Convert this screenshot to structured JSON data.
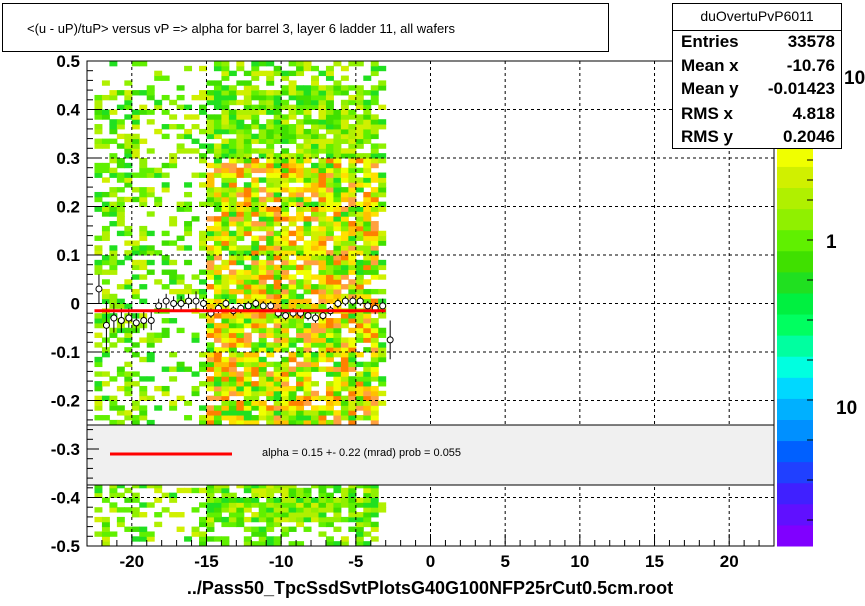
{
  "title": "<(u - uP)/tuP>  versus   vP => alpha for barrel 3, layer 6 ladder 11, all wafers",
  "stats": {
    "name": "duOvertuPvP6011",
    "rows": [
      {
        "label": "Entries",
        "value": "33578"
      },
      {
        "label": "Mean x",
        "value": "-10.76"
      },
      {
        "label": "Mean y",
        "value": "-0.01423"
      },
      {
        "label": "RMS x",
        "value": "4.818"
      },
      {
        "label": "RMS y",
        "value": "0.2046"
      }
    ]
  },
  "fit": {
    "text": "alpha =     0.15 +-  0.22 (mrad) prob = 0.055",
    "line_color": "#ff0000"
  },
  "xlabel": "../Pass50_TpcSsdSvtPlotsG40G100NFP25rCut0.5cm.root",
  "zaxis_labels": [
    {
      "text": "10",
      "value": 10
    },
    {
      "text": "1",
      "value": 1
    },
    {
      "text": "10",
      "value": 10
    }
  ],
  "colors": {
    "fit_line": "#ff0000",
    "palette": [
      "#8000ff",
      "#6010ff",
      "#4020ff",
      "#2040ff",
      "#0060ff",
      "#0090ff",
      "#00b0ff",
      "#00d8ff",
      "#00ffe0",
      "#00ffa0",
      "#00ff60",
      "#00f040",
      "#20e020",
      "#40e000",
      "#60f000",
      "#90f000",
      "#b0f000",
      "#d0f000",
      "#f0ff00",
      "#ffe000",
      "#ffc000",
      "#ffa040",
      "#ffffff"
    ]
  },
  "chart_data": {
    "type": "heatmap",
    "x_ticks": [
      -20,
      -15,
      -10,
      -5,
      0,
      5,
      10,
      15,
      20
    ],
    "y_ticks": [
      -0.5,
      -0.4,
      -0.3,
      -0.2,
      -0.1,
      0,
      0.1,
      0.2,
      0.3,
      0.4,
      0.5
    ],
    "xlim": [
      -23,
      23
    ],
    "ylim": [
      -0.5,
      0.5
    ],
    "grid": true,
    "filled_x_range": [
      -22.5,
      -3
    ],
    "dense_x_range": [
      -15,
      -3.5
    ],
    "profile_points": [
      {
        "x": -22.2,
        "y": 0.03,
        "err": 0.03
      },
      {
        "x": -21.7,
        "y": -0.045,
        "err": 0.05
      },
      {
        "x": -21.2,
        "y": -0.03,
        "err": 0.03
      },
      {
        "x": -20.7,
        "y": -0.035,
        "err": 0.025
      },
      {
        "x": -20.2,
        "y": -0.03,
        "err": 0.02
      },
      {
        "x": -19.7,
        "y": -0.04,
        "err": 0.02
      },
      {
        "x": -19.2,
        "y": -0.035,
        "err": 0.02
      },
      {
        "x": -18.7,
        "y": -0.035,
        "err": 0.02
      },
      {
        "x": -18.2,
        "y": -0.005,
        "err": 0.015
      },
      {
        "x": -17.7,
        "y": 0.005,
        "err": 0.015
      },
      {
        "x": -17.2,
        "y": 0.0,
        "err": 0.015
      },
      {
        "x": -16.7,
        "y": 0.0,
        "err": 0.015
      },
      {
        "x": -16.2,
        "y": 0.005,
        "err": 0.015
      },
      {
        "x": -15.7,
        "y": 0.005,
        "err": 0.02
      },
      {
        "x": -15.2,
        "y": 0.0,
        "err": 0.012
      },
      {
        "x": -14.7,
        "y": -0.02,
        "err": 0.01
      },
      {
        "x": -14.2,
        "y": -0.01,
        "err": 0.01
      },
      {
        "x": -13.7,
        "y": 0.0,
        "err": 0.01
      },
      {
        "x": -13.2,
        "y": -0.015,
        "err": 0.01
      },
      {
        "x": -12.7,
        "y": -0.01,
        "err": 0.01
      },
      {
        "x": -12.2,
        "y": -0.005,
        "err": 0.01
      },
      {
        "x": -11.7,
        "y": 0.0,
        "err": 0.01
      },
      {
        "x": -11.2,
        "y": -0.005,
        "err": 0.01
      },
      {
        "x": -10.7,
        "y": -0.005,
        "err": 0.01
      },
      {
        "x": -10.2,
        "y": -0.02,
        "err": 0.01
      },
      {
        "x": -9.7,
        "y": -0.025,
        "err": 0.01
      },
      {
        "x": -9.2,
        "y": -0.02,
        "err": 0.01
      },
      {
        "x": -8.7,
        "y": -0.02,
        "err": 0.01
      },
      {
        "x": -8.2,
        "y": -0.025,
        "err": 0.01
      },
      {
        "x": -7.7,
        "y": -0.03,
        "err": 0.01
      },
      {
        "x": -7.2,
        "y": -0.025,
        "err": 0.01
      },
      {
        "x": -6.7,
        "y": -0.015,
        "err": 0.01
      },
      {
        "x": -6.2,
        "y": 0.0,
        "err": 0.01
      },
      {
        "x": -5.7,
        "y": 0.005,
        "err": 0.01
      },
      {
        "x": -5.2,
        "y": 0.005,
        "err": 0.01
      },
      {
        "x": -4.7,
        "y": 0.005,
        "err": 0.01
      },
      {
        "x": -4.2,
        "y": -0.005,
        "err": 0.01
      },
      {
        "x": -3.7,
        "y": -0.01,
        "err": 0.012
      },
      {
        "x": -3.2,
        "y": -0.005,
        "err": 0.015
      },
      {
        "x": -2.7,
        "y": -0.075,
        "err": 0.04
      }
    ],
    "fit_line": {
      "x1": -22.5,
      "x2": -3,
      "y1": -0.015,
      "y2": -0.015
    }
  }
}
